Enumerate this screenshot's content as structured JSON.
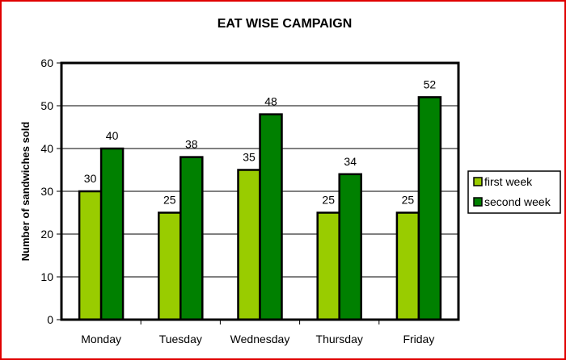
{
  "chart_data": {
    "type": "bar",
    "title": "EAT WISE CAMPAIGN",
    "xlabel": "",
    "ylabel": "Number of sandwiches sold",
    "categories": [
      "Monday",
      "Tuesday",
      "Wednesday",
      "Thursday",
      "Friday"
    ],
    "series": [
      {
        "name": "first week",
        "values": [
          30,
          25,
          35,
          25,
          25
        ],
        "color": "#99cc00"
      },
      {
        "name": "second week",
        "values": [
          40,
          38,
          48,
          34,
          52
        ],
        "color": "#008000"
      }
    ],
    "ylim": [
      0,
      60
    ],
    "yticks": [
      0,
      10,
      20,
      30,
      40,
      50,
      60
    ],
    "grid": true,
    "legend_position": "right",
    "data_labels": true
  },
  "colors": {
    "border": "#e00000",
    "bar_outline": "#000000",
    "gridline": "#000000"
  }
}
